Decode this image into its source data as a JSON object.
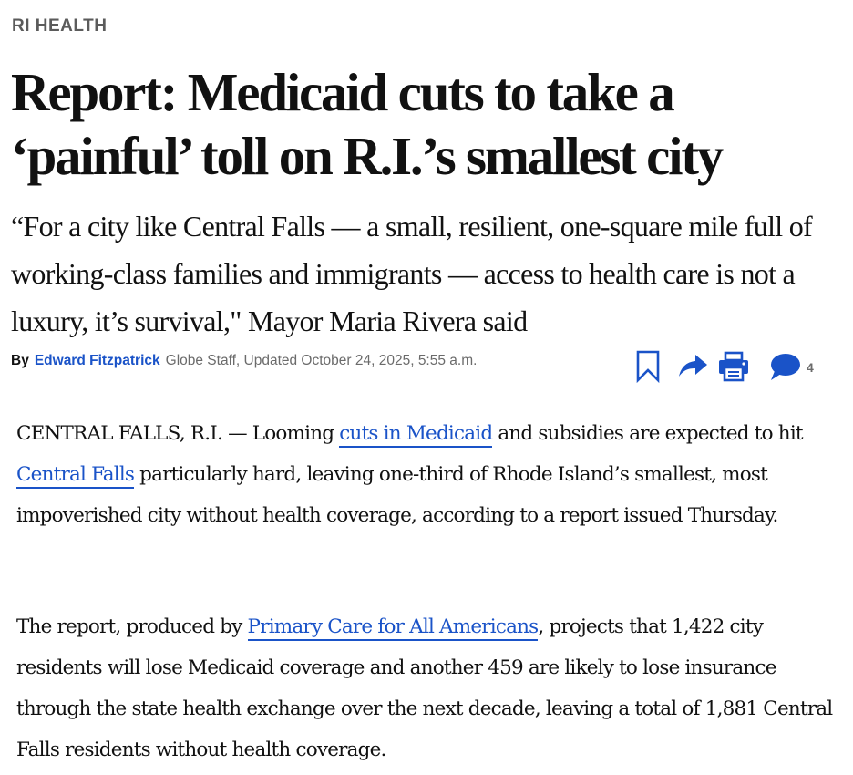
{
  "section": {
    "label": "RI HEALTH"
  },
  "article": {
    "headline": "Report: Medicaid cuts to take a ‘painful’ toll on R.I.’s smallest city",
    "subheadline": "“For a city like Central Falls — a small, resilient, one-square mile full of working-class families and immigrants — access to health care is not a luxury, it’s survival,\" Mayor Maria Rivera said",
    "byline": {
      "by": "By",
      "author": "Edward Fitzpatrick",
      "meta": "Globe Staff, Updated October 24, 2025, 5:55 a.m."
    },
    "tools": {
      "bookmark_icon": "bookmark-icon",
      "share_icon": "share-icon",
      "print_icon": "print-icon",
      "comment_icon": "comment-icon",
      "comment_count": "4",
      "accent_color": "#1a53c8"
    },
    "paragraphs": [
      {
        "t1": "CENTRAL FALLS, R.I. — Looming ",
        "link1": "cuts in Medicaid",
        "t2": " and subsidies are expected to hit ",
        "link2": "Central Falls",
        "t3": " particularly hard, leaving one-third of Rhode Island’s smallest, most impoverished city without health coverage, according to a report issued Thursday."
      },
      {
        "t1": "The report, produced by ",
        "link1": "Primary Care for All Americans",
        "t2": ", projects that 1,422 city residents will lose Medicaid coverage and another 459 are likely to lose insurance through the state health exchange over the next decade, leaving a total of 1,881 Central Falls residents without health coverage."
      }
    ]
  }
}
